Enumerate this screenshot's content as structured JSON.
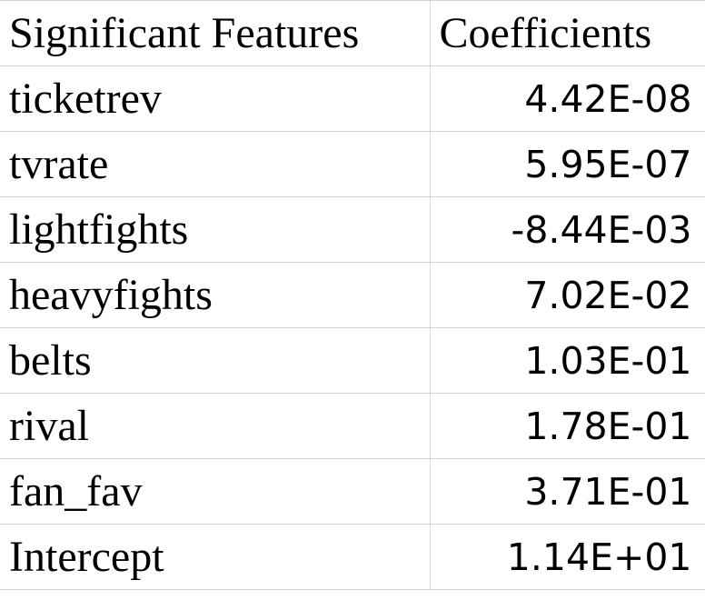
{
  "table": {
    "headers": {
      "feature": "Significant Features",
      "coefficient": "Coefficients"
    },
    "rows": [
      {
        "feature": "ticketrev",
        "coefficient": "4.42E-08"
      },
      {
        "feature": "tvrate",
        "coefficient": "5.95E-07"
      },
      {
        "feature": "lightfights",
        "coefficient": "-8.44E-03"
      },
      {
        "feature": "heavyfights",
        "coefficient": "7.02E-02"
      },
      {
        "feature": "belts",
        "coefficient": "1.03E-01"
      },
      {
        "feature": "rival",
        "coefficient": "1.78E-01"
      },
      {
        "feature": "fan_fav",
        "coefficient": "3.71E-01"
      },
      {
        "feature": "Intercept",
        "coefficient": "1.14E+01"
      }
    ]
  },
  "colors": {
    "gridline": "#d4d4d4",
    "text": "#000000",
    "background": "#ffffff"
  }
}
